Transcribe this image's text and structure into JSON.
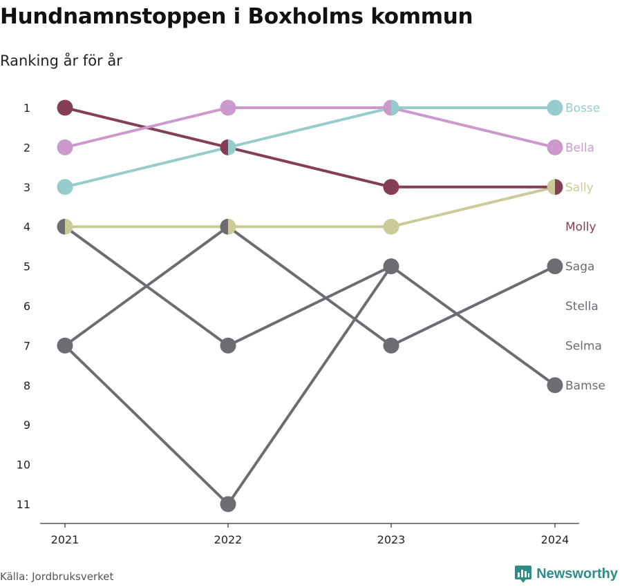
{
  "title": "Hundnamnstoppen i Boxholms kommun",
  "subtitle": "Ranking år för år",
  "source": "Källa: Jordbruksverket",
  "brand": {
    "name": "Newsworthy",
    "icon": "newsworthy-logo-icon",
    "color": "#2e8b85"
  },
  "chart_data": {
    "type": "line",
    "x": [
      "2021",
      "2022",
      "2023",
      "2024"
    ],
    "y_ticks": [
      1,
      2,
      3,
      4,
      5,
      6,
      7,
      8,
      9,
      10,
      11
    ],
    "ylim": [
      11,
      1
    ],
    "y_inverted": true,
    "grid": false,
    "legend": "end-labels",
    "series": [
      {
        "name": "Saga",
        "values": [
          7,
          4,
          7,
          5
        ],
        "color": "#6d6c73"
      },
      {
        "name": "Stella",
        "values": [
          4,
          7,
          5,
          null
        ],
        "color": "#6d6c73"
      },
      {
        "name": "Selma",
        "values": [
          7,
          11,
          5,
          null
        ],
        "color": "#6d6c73"
      },
      {
        "name": "Bamse",
        "values": [
          null,
          null,
          5,
          8
        ],
        "color": "#6d6c73"
      },
      {
        "name": "Sally",
        "values": [
          4,
          4,
          4,
          3
        ],
        "color": "#cbcb97"
      },
      {
        "name": "Molly",
        "values": [
          1,
          2,
          3,
          3
        ],
        "color": "#843f55"
      },
      {
        "name": "Bella",
        "values": [
          2,
          1,
          1,
          2
        ],
        "color": "#cc99cd"
      },
      {
        "name": "Bosse",
        "values": [
          3,
          2,
          1,
          1
        ],
        "color": "#96cccb"
      }
    ]
  }
}
